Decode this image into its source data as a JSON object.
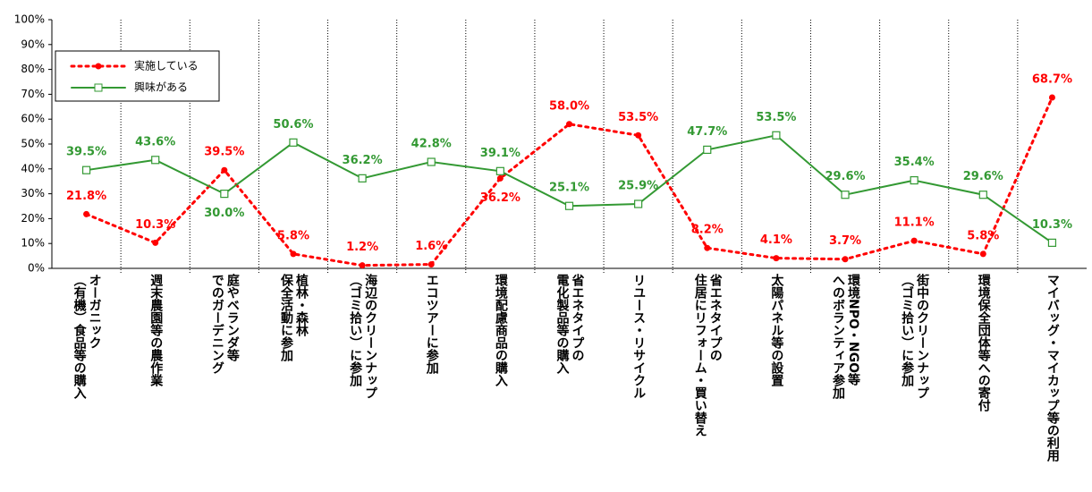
{
  "chart_data": {
    "type": "line",
    "categories": [
      "オーガニック\n（有機）食品等の購入",
      "週末農園等の農作業",
      "庭やベランダ等\nでのガーデニング",
      "植林・森林\n保全活動に参加",
      "海辺のクリーンナップ\n（ゴミ拾い）に参加",
      "エコツアーに参加",
      "環境配慮商品の購入",
      "省エネタイプの\n電化製品等の購入",
      "リユース・リサイクル",
      "省エネタイプの\n住居にリフォーム・買い替え",
      "太陽パネル等の設置",
      "環境NPO・NGO等\nへのボランティア参加",
      "街中のクリーンナップ\n（ゴミ拾い）に参加",
      "環境保全団体等への寄付",
      "マイバッグ・マイカップ等の利用"
    ],
    "series": [
      {
        "name": "実施している",
        "color": "#ff0000",
        "style": "dotted",
        "values": [
          21.8,
          10.3,
          39.5,
          5.8,
          1.2,
          1.6,
          36.2,
          58.0,
          53.5,
          8.2,
          4.1,
          3.7,
          11.1,
          5.8,
          68.7
        ],
        "value_labels": [
          "21.8%",
          "10.3%",
          "39.5%",
          "5.8%",
          "1.2%",
          "1.6%",
          "36.2%",
          "58.0%",
          "53.5%",
          "8.2%",
          "4.1%",
          "3.7%",
          "11.1%",
          "5.8%",
          "68.7%"
        ]
      },
      {
        "name": "興味がある",
        "color": "#339933",
        "style": "solid",
        "values": [
          39.5,
          43.6,
          30.0,
          50.6,
          36.2,
          42.8,
          39.1,
          25.1,
          25.9,
          47.7,
          53.5,
          29.6,
          35.4,
          29.6,
          10.3
        ],
        "value_labels": [
          "39.5%",
          "43.6%",
          "30.0%",
          "50.6%",
          "36.2%",
          "42.8%",
          "39.1%",
          "25.1%",
          "25.9%",
          "47.7%",
          "53.5%",
          "29.6%",
          "35.4%",
          "29.6%",
          "10.3%"
        ]
      }
    ],
    "ylim": [
      0,
      100
    ],
    "yticks": [
      {
        "value": 0,
        "label": "0%"
      },
      {
        "value": 10,
        "label": "10%"
      },
      {
        "value": 20,
        "label": "20%"
      },
      {
        "value": 30,
        "label": "30%"
      },
      {
        "value": 40,
        "label": "40%"
      },
      {
        "value": 50,
        "label": "50%"
      },
      {
        "value": 60,
        "label": "60%"
      },
      {
        "value": 70,
        "label": "70%"
      },
      {
        "value": 80,
        "label": "80%"
      },
      {
        "value": 90,
        "label": "90%"
      },
      {
        "value": 100,
        "label": "100%"
      }
    ],
    "legend": "upper left"
  }
}
